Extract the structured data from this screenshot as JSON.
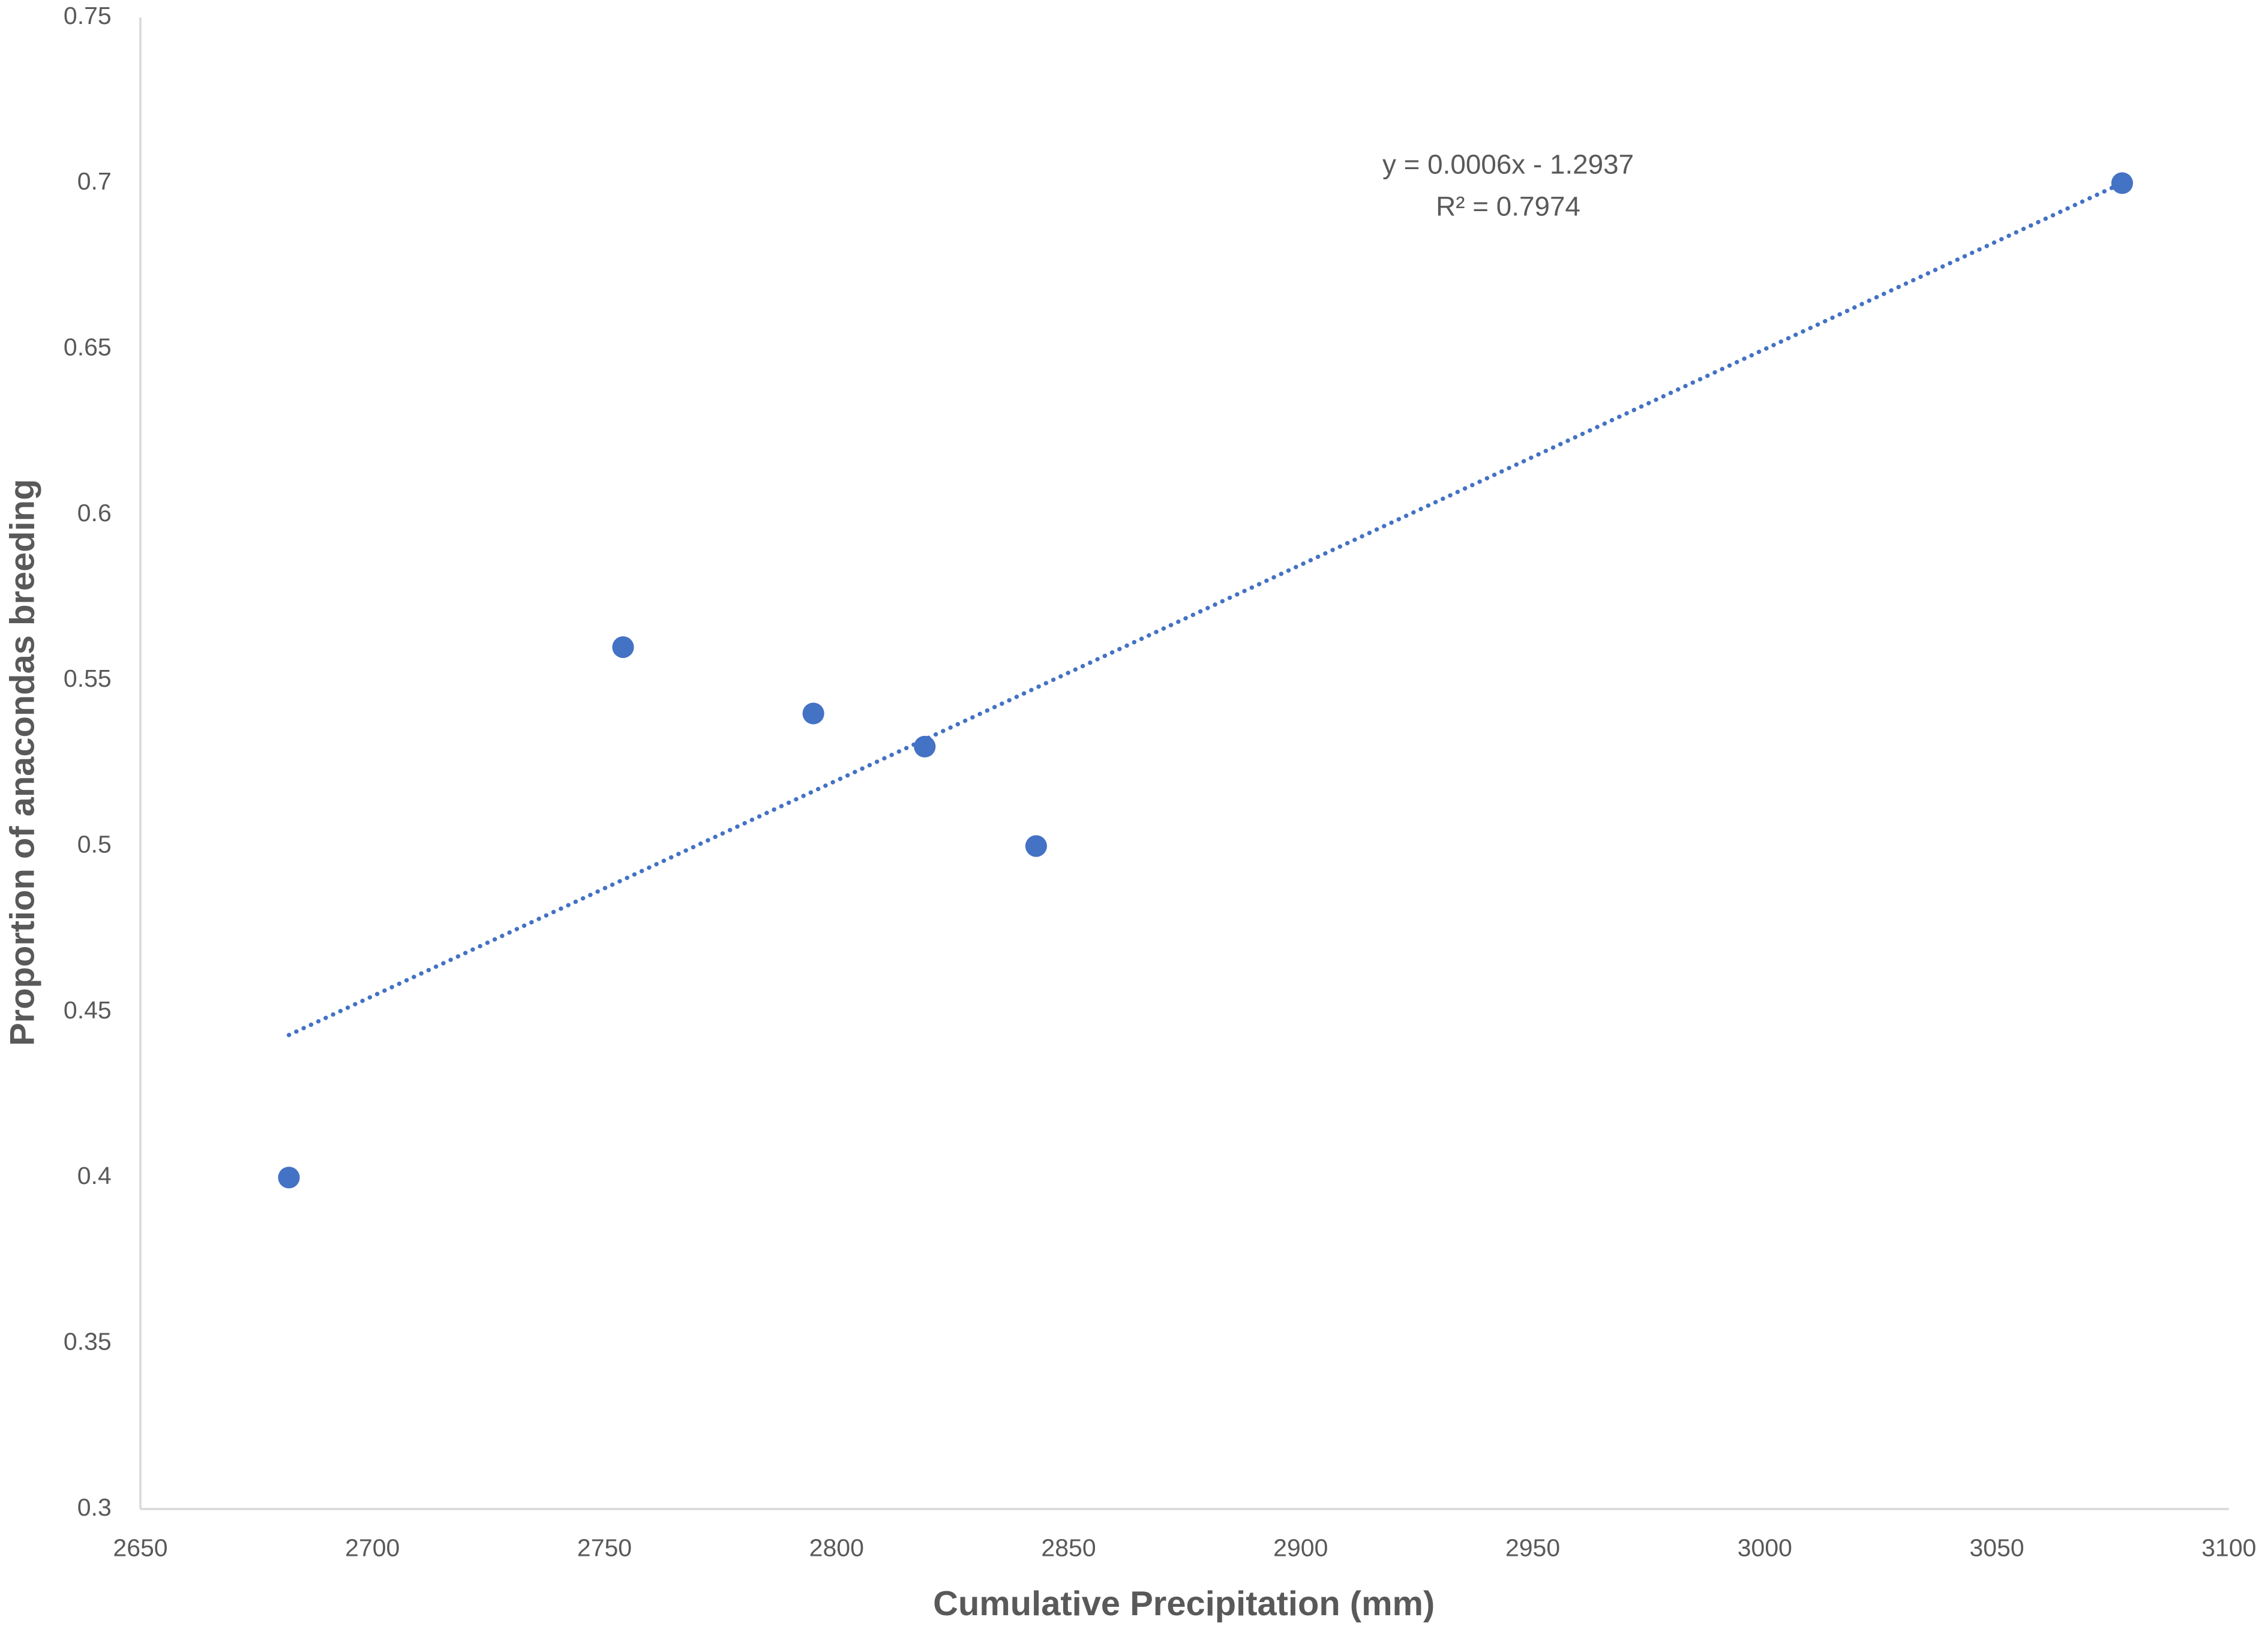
{
  "chart_data": {
    "type": "scatter",
    "x_label": "Cumulative Precipitation (mm)",
    "y_label": "Proportion of anacondas breeding",
    "x": [
      2682,
      2754,
      2795,
      2819,
      2843,
      3077
    ],
    "values": [
      0.4,
      0.56,
      0.54,
      0.53,
      0.5,
      0.7
    ],
    "color": "#4472c4",
    "trendline": {
      "x": [
        2682,
        3077
      ],
      "values": [
        0.443,
        0.7
      ],
      "color": "#4472c4"
    },
    "annotations": [
      "y = 0.0006x - 1.2937",
      "R² = 0.7974"
    ],
    "xlim": [
      2650,
      3100
    ],
    "xticks": [
      2650,
      2700,
      2750,
      2800,
      2850,
      2900,
      2950,
      3000,
      3050,
      3100
    ],
    "ylim": [
      0.3,
      0.75
    ],
    "yticks": [
      0.3,
      0.35,
      0.4,
      0.45,
      0.5,
      0.55,
      0.6,
      0.65,
      0.7,
      0.75
    ],
    "grid": false
  }
}
